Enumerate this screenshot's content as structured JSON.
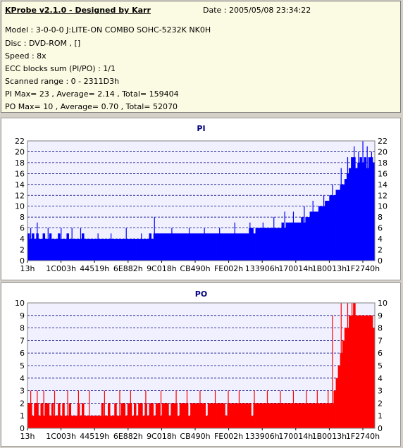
{
  "header": {
    "title": "KProbe v2.1.0 - Designed by Karr",
    "date": "Date : 2005/05/08 23:34:22",
    "lines": [
      "Model : 3-0-0-0 J:LITE-ON COMBO SOHC-5232K NK0H",
      "Disc : DVD-ROM ,  []",
      "Speed : 8x",
      "ECC blocks sum (PI/PO) : 1/1",
      "Scanned range : 0 - 2311D3h",
      "PI Max= 23 , Average= 2.14 , Total= 159404",
      "PO Max= 10 , Average= 0.70 , Total= 52070"
    ]
  },
  "colors": {
    "pi": "#0000ff",
    "po": "#ff0000",
    "grid": "#000080",
    "plot_bg": "#f0f0ff"
  },
  "chart_data": [
    {
      "type": "bar",
      "title": "PI",
      "xlabel": "",
      "ylabel": "",
      "ylim": [
        0,
        22
      ],
      "yticks": [
        0,
        2,
        4,
        6,
        8,
        10,
        12,
        14,
        16,
        18,
        20,
        22
      ],
      "xtick_labels": [
        "13h",
        "1C003h",
        "44519h",
        "6E882h",
        "9C018h",
        "CB490h",
        "FE002h",
        "133906h",
        "170014h",
        "1B0013h",
        "1F2740h"
      ],
      "x_range": [
        "0",
        "2311D3h"
      ],
      "grid": true,
      "series": [
        {
          "values": [
            5,
            4,
            5,
            4,
            5,
            4,
            4,
            5,
            4,
            4,
            5,
            4,
            4,
            4,
            5,
            4,
            4,
            4,
            5,
            4,
            4,
            4,
            4,
            4,
            4,
            5,
            4,
            4,
            4,
            4,
            4,
            4,
            4,
            4,
            4,
            4,
            4,
            4,
            4,
            4,
            4,
            4,
            4,
            4,
            4,
            4,
            4,
            4,
            4,
            4,
            4,
            4,
            4,
            4,
            4,
            4,
            5,
            4,
            5,
            5,
            5,
            5,
            5,
            5,
            5,
            5,
            5,
            5,
            5,
            5,
            5,
            5,
            5,
            5,
            5,
            5,
            5,
            5,
            5,
            5,
            5,
            5,
            5,
            5,
            5,
            5,
            5,
            5,
            5,
            5,
            5,
            5,
            5,
            5,
            5,
            5,
            5,
            5,
            5,
            5,
            5,
            5,
            6,
            6,
            5,
            6,
            6,
            6,
            6,
            6,
            6,
            6,
            6,
            6,
            6,
            6,
            6,
            7,
            6,
            7,
            7,
            7,
            7,
            7,
            7,
            7,
            8,
            7,
            8,
            8,
            9,
            9,
            9,
            9,
            10,
            10,
            10,
            11,
            11,
            12,
            12,
            12,
            13,
            13,
            14,
            14,
            15,
            16,
            17,
            19,
            19,
            17,
            18,
            19,
            18,
            19,
            17,
            19,
            19,
            18
          ]
        }
      ],
      "spikes": [
        [
          1,
          6
        ],
        [
          4,
          7
        ],
        [
          9,
          6
        ],
        [
          15,
          6
        ],
        [
          20,
          6
        ],
        [
          24,
          6
        ],
        [
          32,
          5
        ],
        [
          38,
          5
        ],
        [
          45,
          6
        ],
        [
          52,
          5
        ],
        [
          58,
          8
        ],
        [
          66,
          6
        ],
        [
          74,
          6
        ],
        [
          81,
          6
        ],
        [
          88,
          6
        ],
        [
          95,
          7
        ],
        [
          102,
          7
        ],
        [
          108,
          7
        ],
        [
          113,
          8
        ],
        [
          118,
          9
        ],
        [
          122,
          9
        ],
        [
          127,
          10
        ],
        [
          131,
          11
        ],
        [
          136,
          12
        ],
        [
          140,
          14
        ],
        [
          144,
          17
        ],
        [
          147,
          19
        ],
        [
          150,
          21
        ],
        [
          152,
          20
        ],
        [
          154,
          22
        ],
        [
          156,
          21
        ],
        [
          158,
          20
        ]
      ]
    },
    {
      "type": "bar",
      "title": "PO",
      "xlabel": "",
      "ylabel": "",
      "ylim": [
        0,
        10
      ],
      "yticks": [
        0,
        1,
        2,
        3,
        4,
        5,
        6,
        7,
        8,
        9,
        10
      ],
      "xtick_labels": [
        "13h",
        "1C003h",
        "44519h",
        "6E882h",
        "9C018h",
        "CB490h",
        "FE002h",
        "133906h",
        "170014h",
        "1B0013h",
        "1F2740h"
      ],
      "x_range": [
        "0",
        "2311D3h"
      ],
      "grid": true,
      "series": [
        {
          "values": [
            2,
            2,
            1,
            2,
            2,
            1,
            2,
            1,
            2,
            2,
            1,
            2,
            1,
            1,
            2,
            1,
            2,
            1,
            1,
            2,
            1,
            1,
            1,
            2,
            1,
            2,
            1,
            1,
            1,
            1,
            1,
            1,
            1,
            1,
            2,
            1,
            1,
            2,
            1,
            1,
            2,
            1,
            1,
            2,
            2,
            1,
            2,
            2,
            1,
            2,
            1,
            2,
            2,
            1,
            2,
            1,
            2,
            2,
            1,
            2,
            2,
            1,
            2,
            2,
            2,
            1,
            2,
            2,
            2,
            1,
            2,
            2,
            2,
            2,
            1,
            2,
            2,
            2,
            2,
            2,
            2,
            2,
            1,
            2,
            2,
            2,
            2,
            2,
            2,
            2,
            2,
            1,
            2,
            2,
            2,
            2,
            2,
            2,
            2,
            2,
            2,
            2,
            2,
            1,
            2,
            2,
            2,
            2,
            2,
            2,
            2,
            2,
            2,
            2,
            2,
            2,
            2,
            2,
            2,
            2,
            2,
            2,
            2,
            2,
            2,
            2,
            2,
            2,
            2,
            2,
            2,
            2,
            2,
            2,
            2,
            2,
            2,
            2,
            2,
            2,
            2,
            3,
            4,
            5,
            6,
            7,
            8,
            8,
            9,
            9,
            10,
            9,
            9,
            9,
            9,
            9,
            9,
            9,
            9,
            8
          ]
        }
      ],
      "spikes": [
        [
          1,
          3
        ],
        [
          4,
          3
        ],
        [
          7,
          3
        ],
        [
          12,
          3
        ],
        [
          18,
          3
        ],
        [
          23,
          3
        ],
        [
          28,
          3
        ],
        [
          35,
          3
        ],
        [
          42,
          3
        ],
        [
          47,
          3
        ],
        [
          54,
          3
        ],
        [
          61,
          3
        ],
        [
          68,
          3
        ],
        [
          73,
          3
        ],
        [
          79,
          3
        ],
        [
          86,
          3
        ],
        [
          92,
          3
        ],
        [
          97,
          3
        ],
        [
          104,
          3
        ],
        [
          110,
          3
        ],
        [
          116,
          3
        ],
        [
          122,
          3
        ],
        [
          128,
          3
        ],
        [
          133,
          3
        ],
        [
          138,
          3
        ],
        [
          140,
          9
        ],
        [
          144,
          10
        ],
        [
          147,
          10
        ],
        [
          149,
          10
        ],
        [
          151,
          9
        ]
      ]
    }
  ]
}
